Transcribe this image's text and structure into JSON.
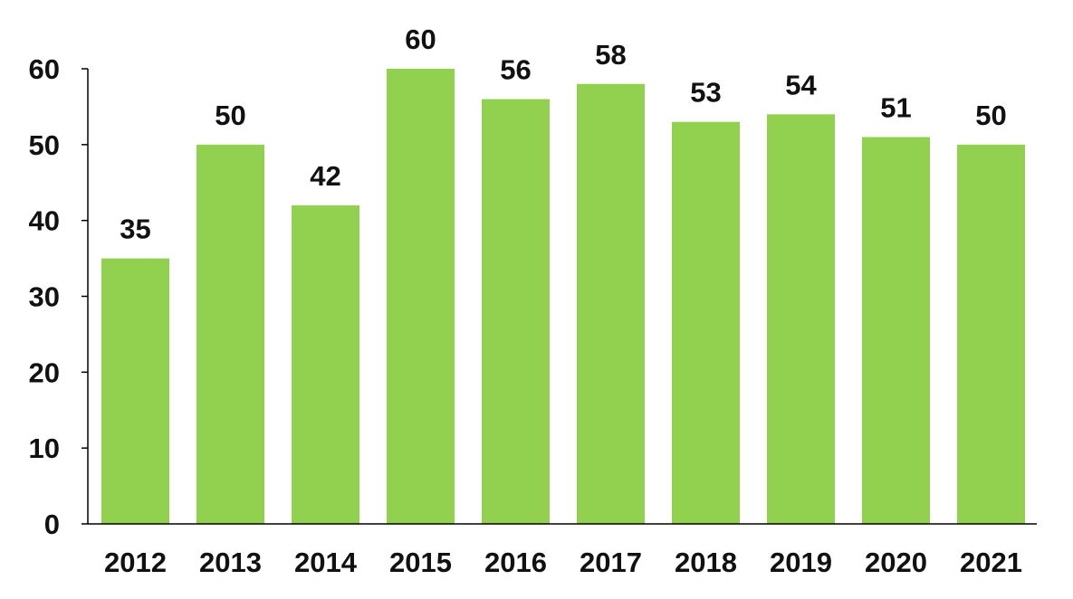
{
  "chart_data": {
    "type": "bar",
    "title": "",
    "xlabel": "",
    "ylabel": "",
    "categories": [
      "2012",
      "2013",
      "2014",
      "2015",
      "2016",
      "2017",
      "2018",
      "2019",
      "2020",
      "2021"
    ],
    "values": [
      35,
      50,
      42,
      60,
      56,
      58,
      53,
      54,
      51,
      50
    ],
    "ylim": [
      0,
      60
    ],
    "yticks": [
      "0",
      "10",
      "20",
      "30",
      "40",
      "50",
      "60"
    ],
    "grid": false,
    "data_labels": true,
    "bar_color": "#92d050",
    "axis_color": "#000000",
    "text_color": "#111111"
  }
}
